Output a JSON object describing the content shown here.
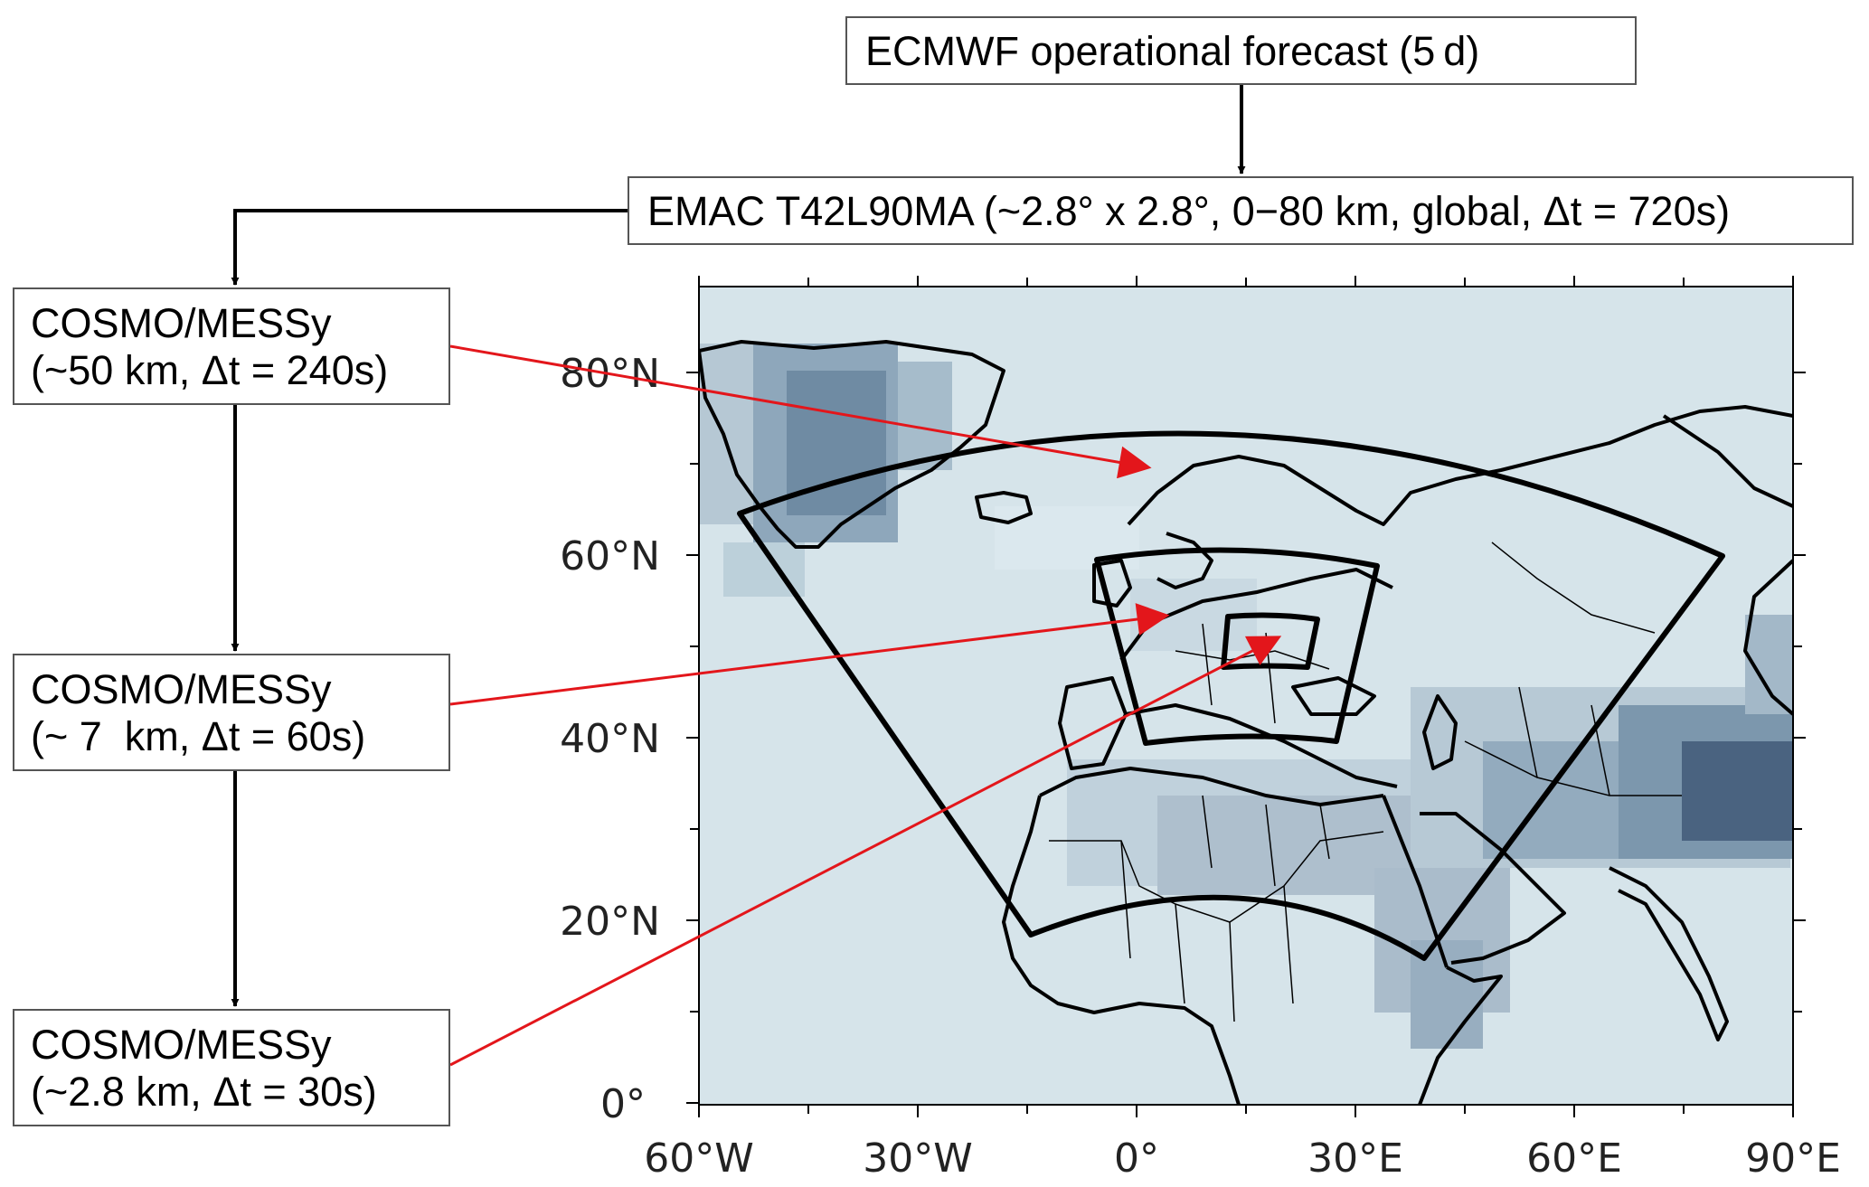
{
  "source_box": {
    "label": "ECMWF operational forecast (5 d)"
  },
  "global_model": {
    "label": "EMAC T42L90MA (~2.8° x 2.8°, 0−80 km, global, Δt = 720s)"
  },
  "nested_models": [
    {
      "line1": "COSMO/MESSy",
      "line2": "(~50 km, Δt = 240s)"
    },
    {
      "line1": "COSMO/MESSy",
      "line2": "(~ 7  km, Δt = 60s)"
    },
    {
      "line1": "COSMO/MESSy",
      "line2": "(~2.8 km, Δt = 30s)"
    }
  ],
  "map": {
    "lon_ticks": [
      "60°W",
      "30°W",
      "0°",
      "30°E",
      "60°E",
      "90°E"
    ],
    "lat_ticks": [
      "80°N",
      "60°N",
      "40°N",
      "20°N",
      "0°"
    ],
    "lon_range": [
      -60,
      90
    ],
    "lat_range": [
      0,
      90
    ],
    "colors": {
      "ocean": "#d6e4ea",
      "shading": "#3f5673",
      "coast": "#000000",
      "arrow": "#e3161b"
    }
  }
}
